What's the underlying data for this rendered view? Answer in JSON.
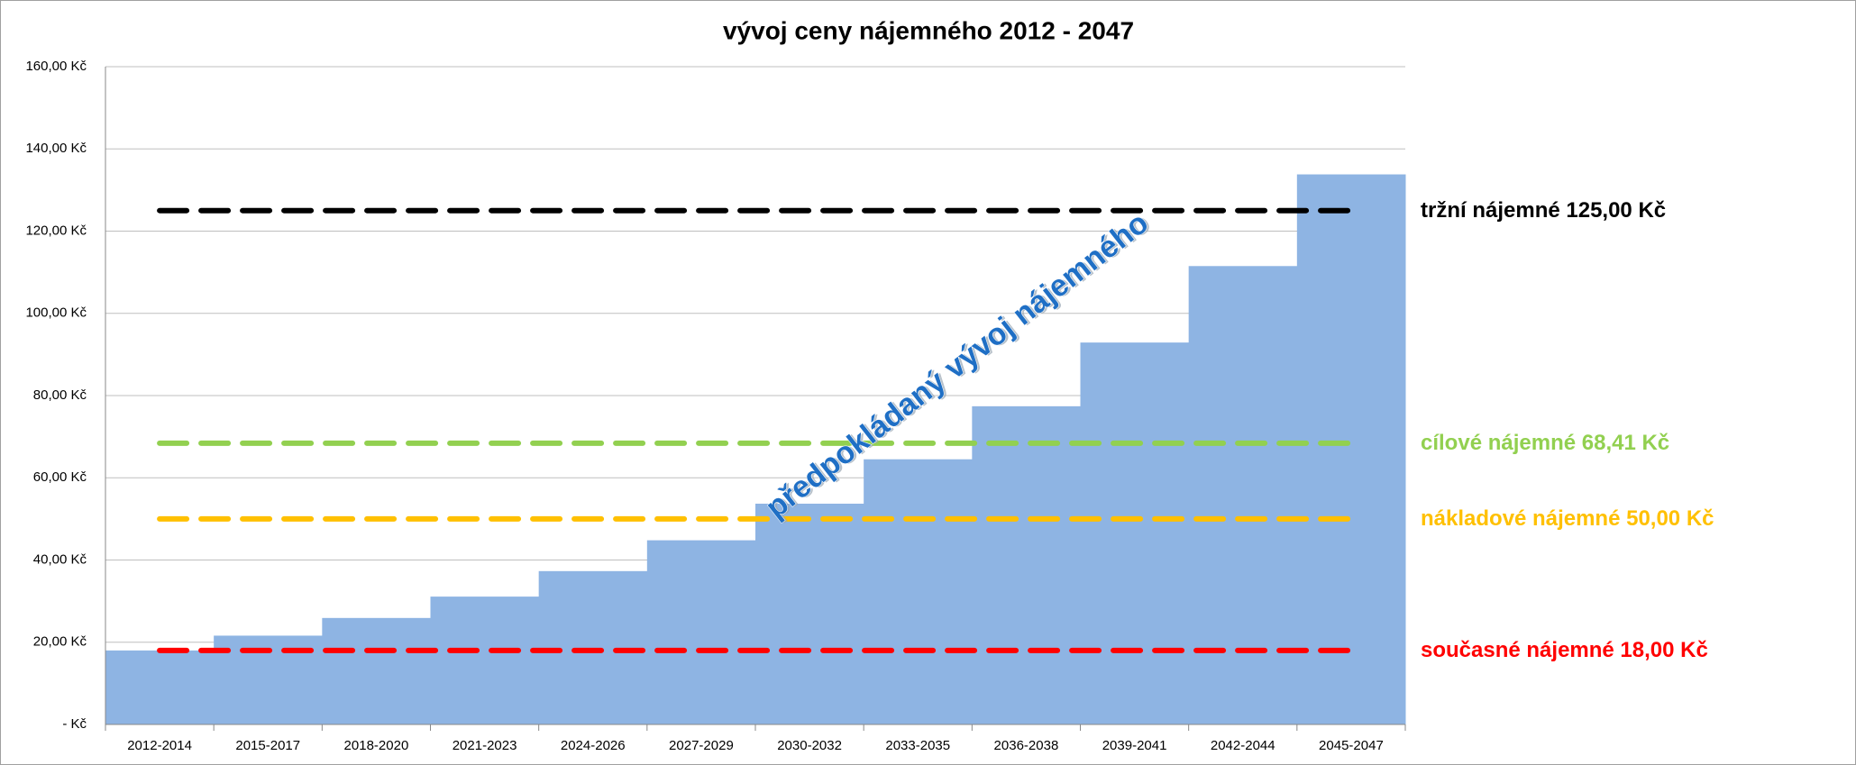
{
  "chart_data": {
    "type": "step-area",
    "title": "vývoj ceny nájemného 2012 - 2047",
    "categories": [
      "2012-2014",
      "2015-2017",
      "2018-2020",
      "2021-2023",
      "2024-2026",
      "2027-2029",
      "2030-2032",
      "2033-2035",
      "2036-2038",
      "2039-2041",
      "2042-2044",
      "2045-2047"
    ],
    "values": [
      18,
      21.6,
      25.9,
      31.1,
      37.3,
      44.8,
      53.7,
      64.5,
      77.4,
      92.9,
      111.5,
      133.8
    ],
    "color": "#8eb4e3",
    "ylim": [
      0,
      160
    ],
    "yticks": [
      {
        "value": 0,
        "label": "-   Kč"
      },
      {
        "value": 20,
        "label": "20,00 Kč"
      },
      {
        "value": 40,
        "label": "40,00 Kč"
      },
      {
        "value": 60,
        "label": "60,00 Kč"
      },
      {
        "value": 80,
        "label": "80,00 Kč"
      },
      {
        "value": 100,
        "label": "100,00 Kč"
      },
      {
        "value": 120,
        "label": "120,00 Kč"
      },
      {
        "value": 140,
        "label": "140,00 Kč"
      },
      {
        "value": 160,
        "label": "160,00 Kč"
      }
    ],
    "grid": true,
    "reference_lines": [
      {
        "label": "tržní nájemné 125,00 Kč",
        "value": 125,
        "color": "#000000"
      },
      {
        "label": "cílové nájemné 68,41 Kč",
        "value": 68.41,
        "color": "#92d050"
      },
      {
        "label": "nákladové nájemné 50,00 Kč",
        "value": 50,
        "color": "#ffc000"
      },
      {
        "label": "současné nájemné 18,00 Kč",
        "value": 18,
        "color": "#ff0000"
      }
    ],
    "annotation": "předpokládaný vývoj nájemného"
  }
}
